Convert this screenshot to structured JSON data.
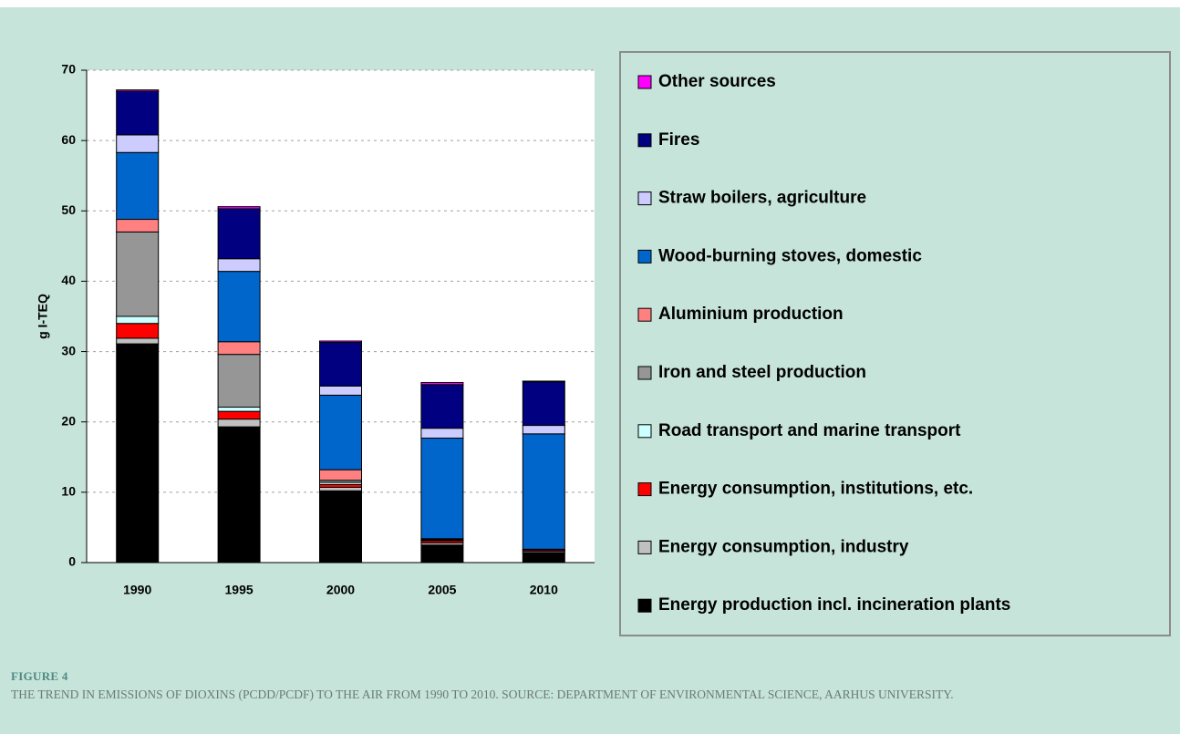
{
  "figure": {
    "label": "FIGURE 4",
    "caption": "THE TREND IN EMISSIONS OF DIOXINS (PCDD/PCDF) TO THE AIR FROM 1990 TO 2010. SOURCE: DEPARTMENT OF ENVIRONMENTAL SCIENCE, AARHUS UNIVERSITY."
  },
  "chart_data": {
    "type": "stacked_bar",
    "ylabel": "g I-TEQ",
    "categories": [
      "1990",
      "1995",
      "2000",
      "2005",
      "2010"
    ],
    "series": [
      {
        "name": "Energy production incl. incineration plants",
        "color": "#000000",
        "values": [
          31.1,
          19.3,
          10.2,
          2.5,
          1.4
        ]
      },
      {
        "name": "Energy consumption, industry",
        "color": "#c0c0c0",
        "values": [
          0.8,
          1.1,
          0.5,
          0.3,
          0.2
        ]
      },
      {
        "name": "Energy consumption, institutions, etc.",
        "color": "#ff0000",
        "values": [
          2.1,
          1.1,
          0.4,
          0.3,
          0.2
        ]
      },
      {
        "name": "Road transport and marine transport",
        "color": "#ccffff",
        "values": [
          1.0,
          0.6,
          0.3,
          0.1,
          0.1
        ]
      },
      {
        "name": "Iron and steel production",
        "color": "#969696",
        "values": [
          12.0,
          7.5,
          0.3,
          0.1,
          0.0
        ]
      },
      {
        "name": "Aluminium production",
        "color": "#ff8080",
        "values": [
          1.8,
          1.8,
          1.5,
          0.1,
          0.0
        ]
      },
      {
        "name": "Wood-burning stoves, domestic",
        "color": "#0066cc",
        "values": [
          9.5,
          10.0,
          10.6,
          14.3,
          16.4
        ]
      },
      {
        "name": "Straw boilers, agriculture",
        "color": "#ccccff",
        "values": [
          2.5,
          1.8,
          1.3,
          1.4,
          1.2
        ]
      },
      {
        "name": "Fires",
        "color": "#000080",
        "values": [
          6.2,
          7.1,
          6.2,
          6.2,
          6.2
        ]
      },
      {
        "name": "Other sources",
        "color": "#ff00ff",
        "values": [
          0.2,
          0.3,
          0.2,
          0.3,
          0.1
        ]
      }
    ],
    "ylim": [
      0,
      70
    ],
    "yticks": [
      0,
      10,
      20,
      30,
      40,
      50,
      60,
      70
    ],
    "grid": true
  }
}
